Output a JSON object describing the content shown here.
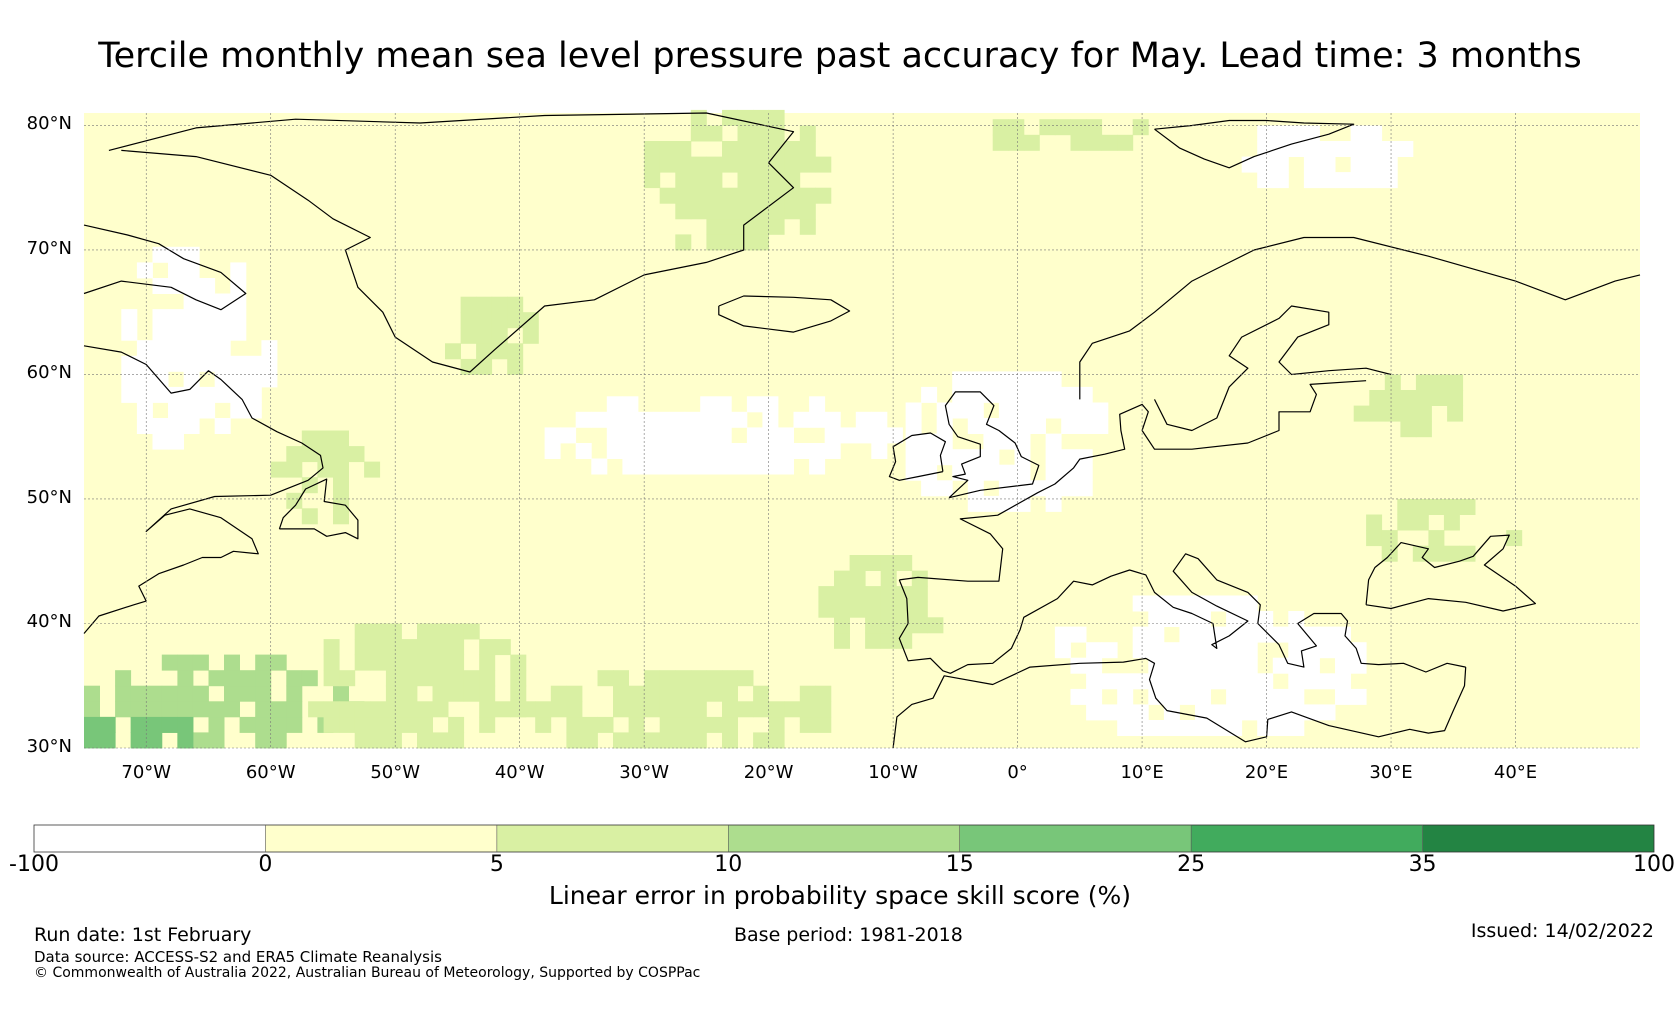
{
  "title": "Tercile monthly mean sea level pressure past accuracy for May. Lead time: 3 months",
  "map": {
    "region": "North Atlantic and Europe",
    "lon_range": [
      -75,
      50
    ],
    "lat_range": [
      30,
      81
    ],
    "lat_ticks": [
      {
        "value": 80,
        "label": "80°N"
      },
      {
        "value": 70,
        "label": "70°N"
      },
      {
        "value": 60,
        "label": "60°N"
      },
      {
        "value": 50,
        "label": "50°N"
      },
      {
        "value": 40,
        "label": "40°N"
      },
      {
        "value": 30,
        "label": "30°N"
      }
    ],
    "lon_ticks": [
      {
        "value": -70,
        "label": "70°W"
      },
      {
        "value": -60,
        "label": "60°W"
      },
      {
        "value": -50,
        "label": "50°W"
      },
      {
        "value": -40,
        "label": "40°W"
      },
      {
        "value": -30,
        "label": "30°W"
      },
      {
        "value": -20,
        "label": "20°W"
      },
      {
        "value": -10,
        "label": "10°W"
      },
      {
        "value": 0,
        "label": "0°"
      },
      {
        "value": 10,
        "label": "10°E"
      },
      {
        "value": 20,
        "label": "20°E"
      },
      {
        "value": 30,
        "label": "30°E"
      },
      {
        "value": 40,
        "label": "40°E"
      }
    ],
    "dominant_category": "0 to 5",
    "skill_regions": [
      {
        "name": "subtropical western Atlantic",
        "lon": [
          -75,
          -53
        ],
        "lat": [
          30,
          37
        ],
        "bin": 3
      },
      {
        "name": "subtropical western Atlantic core",
        "lon": [
          -75,
          -66
        ],
        "lat": [
          30,
          33
        ],
        "bin": 4
      },
      {
        "name": "southwest Atlantic",
        "lon": [
          -57,
          -40
        ],
        "lat": [
          30,
          40
        ],
        "bin": 2
      },
      {
        "name": "subtropical central Atlantic",
        "lon": [
          -40,
          -15
        ],
        "lat": [
          30,
          36
        ],
        "bin": 2
      },
      {
        "name": "eastern Atlantic off Iberia",
        "lon": [
          -16,
          -6
        ],
        "lat": [
          38,
          45
        ],
        "bin": 2
      },
      {
        "name": "Greenland Sea",
        "lon": [
          -30,
          -15
        ],
        "lat": [
          70,
          81
        ],
        "bin": 2
      },
      {
        "name": "Fram Strait",
        "lon": [
          -2,
          10
        ],
        "lat": [
          78,
          81
        ],
        "bin": 2
      },
      {
        "name": "southern Greenland",
        "lon": [
          -46,
          -38
        ],
        "lat": [
          60,
          66
        ],
        "bin": 2
      },
      {
        "name": "Labrador Sea",
        "lon": [
          -60,
          -52
        ],
        "lat": [
          48,
          55
        ],
        "bin": 2
      },
      {
        "name": "Baltic region",
        "lon": [
          27,
          37
        ],
        "lat": [
          55,
          60
        ],
        "bin": 2
      },
      {
        "name": "Black Sea",
        "lon": [
          28,
          40
        ],
        "lat": [
          45,
          50
        ],
        "bin": 2
      },
      {
        "name": "Mid-Atlantic gap",
        "lon": [
          -38,
          -10
        ],
        "lat": [
          52,
          58
        ],
        "bin": 0
      },
      {
        "name": "UK and North Sea",
        "lon": [
          -9,
          7
        ],
        "lat": [
          49,
          60
        ],
        "bin": 0
      },
      {
        "name": "Mediterranean",
        "lon": [
          3,
          28
        ],
        "lat": [
          31,
          42
        ],
        "bin": 0
      },
      {
        "name": "Labrador coast",
        "lon": [
          -72,
          -60
        ],
        "lat": [
          54,
          70
        ],
        "bin": 0
      },
      {
        "name": "Barents area",
        "lon": [
          18,
          32
        ],
        "lat": [
          75,
          80
        ],
        "bin": 0
      }
    ]
  },
  "colorbar": {
    "bins": [
      {
        "min": -100,
        "max": 0,
        "color": "#ffffff"
      },
      {
        "min": 0,
        "max": 5,
        "color": "#ffffcc"
      },
      {
        "min": 5,
        "max": 10,
        "color": "#d9f0a3"
      },
      {
        "min": 10,
        "max": 15,
        "color": "#addd8e"
      },
      {
        "min": 15,
        "max": 25,
        "color": "#78c679"
      },
      {
        "min": 25,
        "max": 35,
        "color": "#41ab5d"
      },
      {
        "min": 35,
        "max": 100,
        "color": "#238443"
      }
    ],
    "tick_labels": [
      "-100",
      "0",
      "5",
      "10",
      "15",
      "25",
      "35",
      "100"
    ],
    "label": "Linear error in probability space skill score (%)"
  },
  "footer": {
    "run_date": "Run date: 1st February",
    "base_period": "Base period: 1981-2018",
    "issued": "Issued: 14/02/2022",
    "data_source": "Data source: ACCESS-S2 and ERA5 Climate Reanalysis",
    "copyright": "© Commonwealth of Australia 2022, Australian Bureau of Meteorology, Supported by COSPPac"
  }
}
